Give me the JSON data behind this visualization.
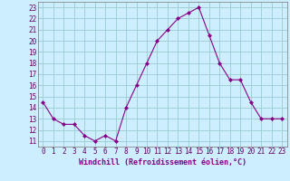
{
  "hours": [
    0,
    1,
    2,
    3,
    4,
    5,
    6,
    7,
    8,
    9,
    10,
    11,
    12,
    13,
    14,
    15,
    16,
    17,
    18,
    19,
    20,
    21,
    22,
    23
  ],
  "values": [
    14.5,
    13.0,
    12.5,
    12.5,
    11.5,
    11.0,
    11.5,
    11.0,
    14.0,
    16.0,
    18.0,
    20.0,
    21.0,
    22.0,
    22.5,
    23.0,
    20.5,
    18.0,
    16.5,
    16.5,
    14.5,
    13.0,
    13.0,
    13.0
  ],
  "line_color": "#880088",
  "marker": "D",
  "marker_size": 2,
  "bg_color": "#cceeff",
  "grid_color": "#99cccc",
  "xlabel": "Windchill (Refroidissement éolien,°C)",
  "ylabel_ticks": [
    11,
    12,
    13,
    14,
    15,
    16,
    17,
    18,
    19,
    20,
    21,
    22,
    23
  ],
  "ylim": [
    10.5,
    23.5
  ],
  "xlim": [
    -0.5,
    23.5
  ],
  "tick_fontsize": 5.5,
  "xlabel_fontsize": 6.0
}
